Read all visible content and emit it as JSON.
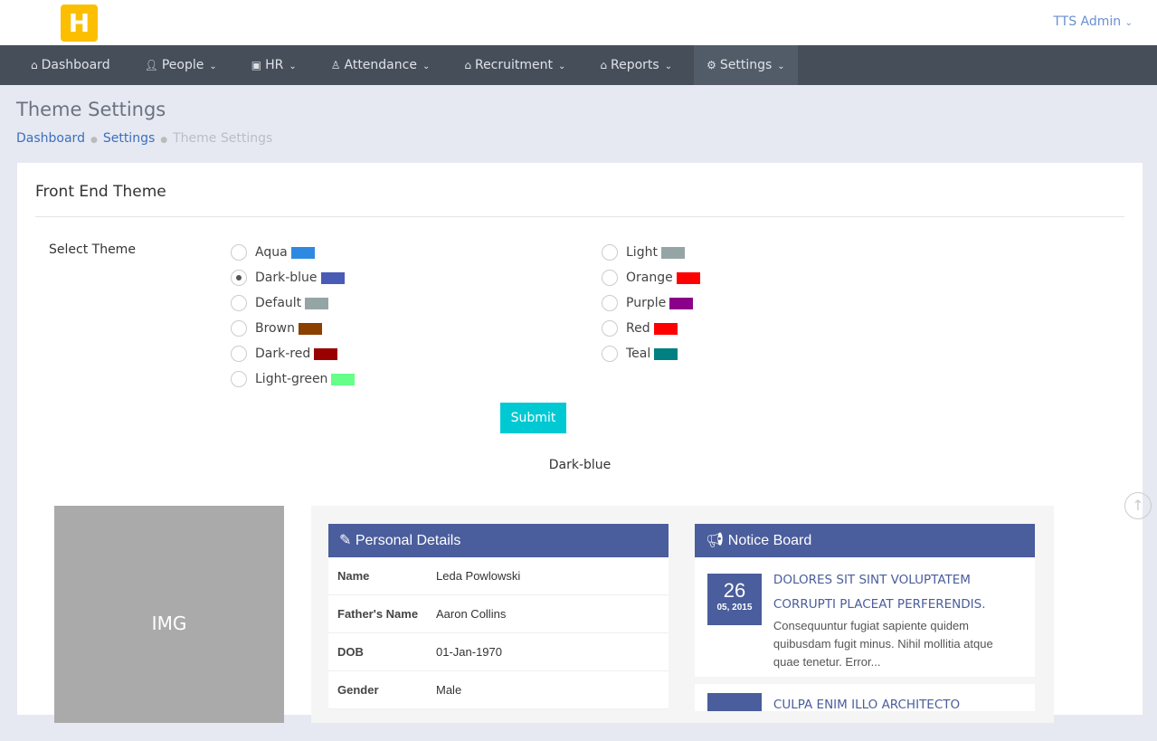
{
  "header": {
    "logo": "H",
    "user": "TTS Admin"
  },
  "nav": [
    {
      "label": "Dashboard",
      "icon": "home-icon",
      "glyph": "⌂",
      "chev": false
    },
    {
      "label": "People",
      "icon": "user-icon",
      "glyph": "👤︎",
      "chev": true
    },
    {
      "label": "HR",
      "icon": "briefcase-icon",
      "glyph": "▣",
      "chev": true
    },
    {
      "label": "Attendance",
      "icon": "user-icon",
      "glyph": "♙",
      "chev": true
    },
    {
      "label": "Recruitment",
      "icon": "graduation-cap-icon",
      "glyph": "⌂",
      "chev": true
    },
    {
      "label": "Reports",
      "icon": "graduation-cap-icon",
      "glyph": "⌂",
      "chev": true
    },
    {
      "label": "Settings",
      "icon": "gear-icon",
      "glyph": "⚙",
      "chev": true,
      "active": true
    }
  ],
  "page": {
    "title": "Theme Settings",
    "breadcrumb": [
      "Dashboard",
      "Settings",
      "Theme Settings"
    ]
  },
  "card": {
    "title": "Front End Theme",
    "select_label": "Select Theme",
    "submit": "Submit",
    "current": "Dark-blue"
  },
  "themes_left": [
    {
      "name": "Aqua",
      "color": "#2e8ae0"
    },
    {
      "name": "Dark-blue",
      "color": "#4a5bb5",
      "selected": true
    },
    {
      "name": "Default",
      "color": "#95a5a6"
    },
    {
      "name": "Brown",
      "color": "#8b3f00"
    },
    {
      "name": "Dark-red",
      "color": "#990000"
    },
    {
      "name": "Light-green",
      "color": "#66ff88"
    }
  ],
  "themes_right": [
    {
      "name": "Light",
      "color": "#95a5a6"
    },
    {
      "name": "Orange",
      "color": "#ff0000"
    },
    {
      "name": "Purple",
      "color": "#8b008b"
    },
    {
      "name": "Red",
      "color": "#ff0000"
    },
    {
      "name": "Teal",
      "color": "#008080"
    }
  ],
  "preview": {
    "img": "IMG",
    "personal": {
      "title": "Personal Details",
      "rows": [
        [
          "Name",
          "Leda Powlowski"
        ],
        [
          "Father's Name",
          "Aaron Collins"
        ],
        [
          "DOB",
          "01-Jan-1970"
        ],
        [
          "Gender",
          "Male"
        ]
      ]
    },
    "notice": {
      "title": "Notice Board",
      "items": [
        {
          "day": "26",
          "month": "05, 2015",
          "title": "DOLORES SIT SINT VOLUPTATEM CORRUPTI PLACEAT PERFERENDIS.",
          "body": "Consequuntur fugiat sapiente quidem quibusdam fugit minus. Nihil mollitia atque quae tenetur. Error..."
        },
        {
          "title": "CULPA ENIM ILLO ARCHITECTO"
        }
      ]
    }
  }
}
